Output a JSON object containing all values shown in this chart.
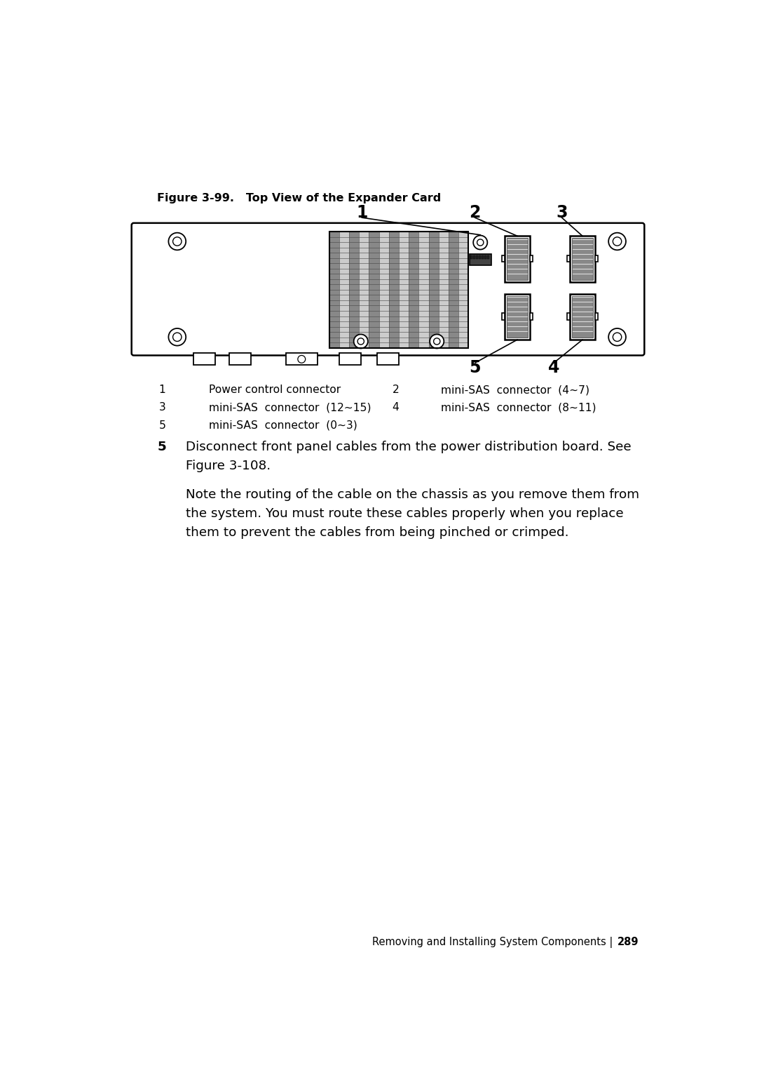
{
  "bg_color": "#ffffff",
  "figure_title": "Figure 3-99.   Top View of the Expander Card",
  "legend_items": [
    {
      "num": "1",
      "col1_label": "Power control connector",
      "col2_num": "2",
      "col2_label": "mini-SAS  connector  (4~7)"
    },
    {
      "num": "3",
      "col1_label": "mini-SAS  connector  (12~15)",
      "col2_num": "4",
      "col2_label": "mini-SAS  connector  (8~11)"
    },
    {
      "num": "5",
      "col1_label": "mini-SAS  connector  (0~3)",
      "col2_num": null,
      "col2_label": null
    }
  ],
  "callout_nums": [
    "1",
    "2",
    "3",
    "5",
    "4"
  ],
  "footer_left": "Removing and Installing System Components | ",
  "footer_page": "289"
}
